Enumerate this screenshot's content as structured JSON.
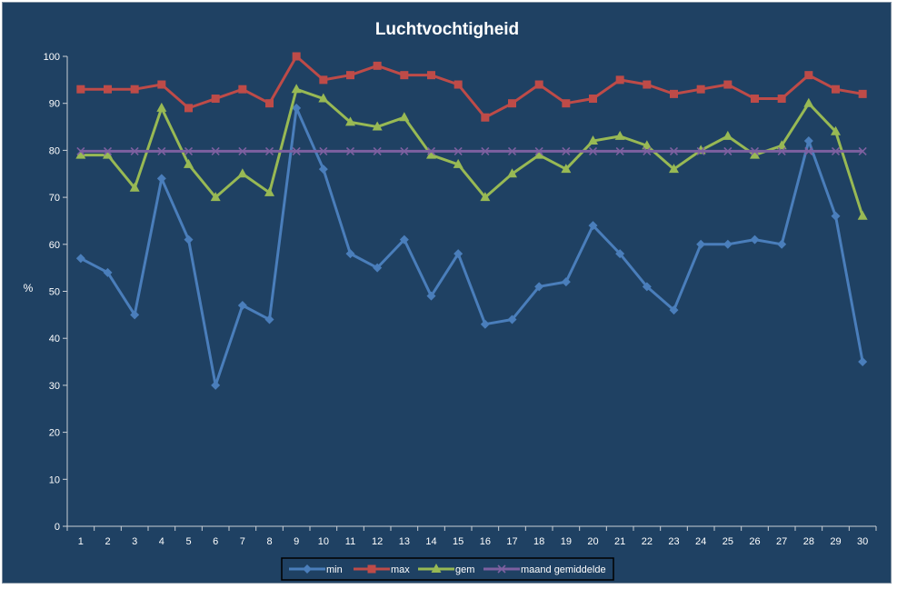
{
  "chart_data": {
    "type": "line",
    "title": "Luchtvochtigheid",
    "xlabel": "",
    "ylabel": "%",
    "ylim": [
      0,
      100
    ],
    "yticks": [
      0,
      10,
      20,
      30,
      40,
      50,
      60,
      70,
      80,
      90,
      100
    ],
    "x": [
      1,
      2,
      3,
      4,
      5,
      6,
      7,
      8,
      9,
      10,
      11,
      12,
      13,
      14,
      15,
      16,
      17,
      18,
      19,
      20,
      21,
      22,
      23,
      24,
      25,
      26,
      27,
      28,
      29,
      30
    ],
    "grid": false,
    "legend": "bottom",
    "series": [
      {
        "name": "min",
        "color": "#4a7ebb",
        "marker": "diamond",
        "values": [
          57,
          54,
          45,
          74,
          61,
          30,
          47,
          44,
          89,
          76,
          58,
          55,
          61,
          49,
          58,
          43,
          44,
          51,
          52,
          64,
          58,
          51,
          46,
          60,
          60,
          61,
          60,
          82,
          66,
          35
        ]
      },
      {
        "name": "max",
        "color": "#be4b48",
        "marker": "square",
        "values": [
          93,
          93,
          93,
          94,
          89,
          91,
          93,
          90,
          100,
          95,
          96,
          98,
          96,
          96,
          94,
          87,
          90,
          94,
          90,
          91,
          95,
          94,
          92,
          93,
          94,
          91,
          91,
          96,
          93,
          92
        ]
      },
      {
        "name": "gem",
        "color": "#98b954",
        "marker": "triangle",
        "values": [
          79,
          79,
          72,
          89,
          77,
          70,
          75,
          71,
          93,
          91,
          86,
          85,
          87,
          79,
          77,
          70,
          75,
          79,
          76,
          82,
          83,
          81,
          76,
          80,
          83,
          79,
          81,
          90,
          84,
          66
        ]
      },
      {
        "name": "maand gemiddelde",
        "color": "#7d60a0",
        "marker": "x",
        "values": [
          79.8,
          79.8,
          79.8,
          79.8,
          79.8,
          79.8,
          79.8,
          79.8,
          79.8,
          79.8,
          79.8,
          79.8,
          79.8,
          79.8,
          79.8,
          79.8,
          79.8,
          79.8,
          79.8,
          79.8,
          79.8,
          79.8,
          79.8,
          79.8,
          79.8,
          79.8,
          79.8,
          79.8,
          79.8,
          79.8
        ]
      }
    ]
  }
}
